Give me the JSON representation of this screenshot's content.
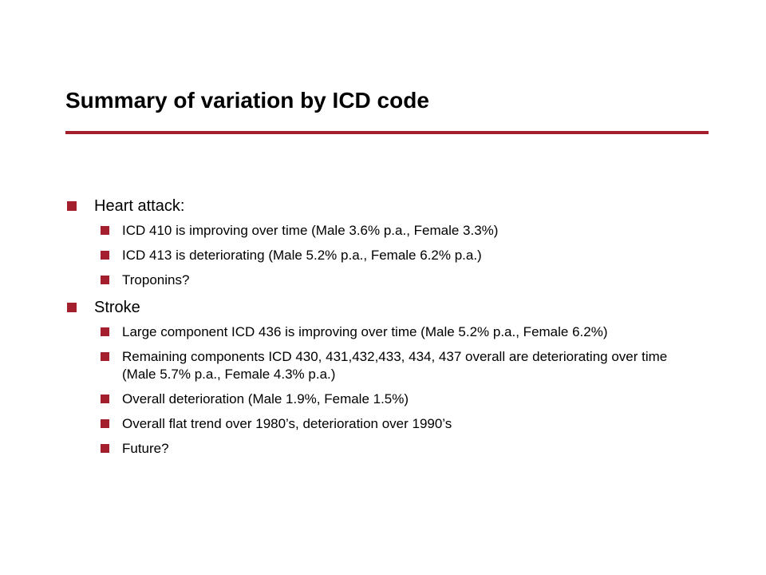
{
  "slide": {
    "title": "Summary of variation by ICD code",
    "accent_color": "#a31f2e",
    "bullets": [
      {
        "text": "Heart attack:",
        "sub": [
          "ICD 410 is improving over time (Male 3.6% p.a., Female 3.3%)",
          "ICD 413 is deteriorating (Male 5.2% p.a., Female 6.2% p.a.)",
          "Troponins?"
        ]
      },
      {
        "text": "Stroke",
        "sub": [
          "Large component ICD 436 is improving over time (Male 5.2% p.a., Female 6.2%)",
          "Remaining components ICD 430, 431,432,433, 434, 437 overall are deteriorating over time (Male 5.7% p.a., Female 4.3% p.a.)",
          "Overall deterioration (Male 1.9%, Female 1.5%)",
          "Overall flat trend over 1980’s, deterioration over 1990’s",
          "Future?"
        ]
      }
    ]
  }
}
